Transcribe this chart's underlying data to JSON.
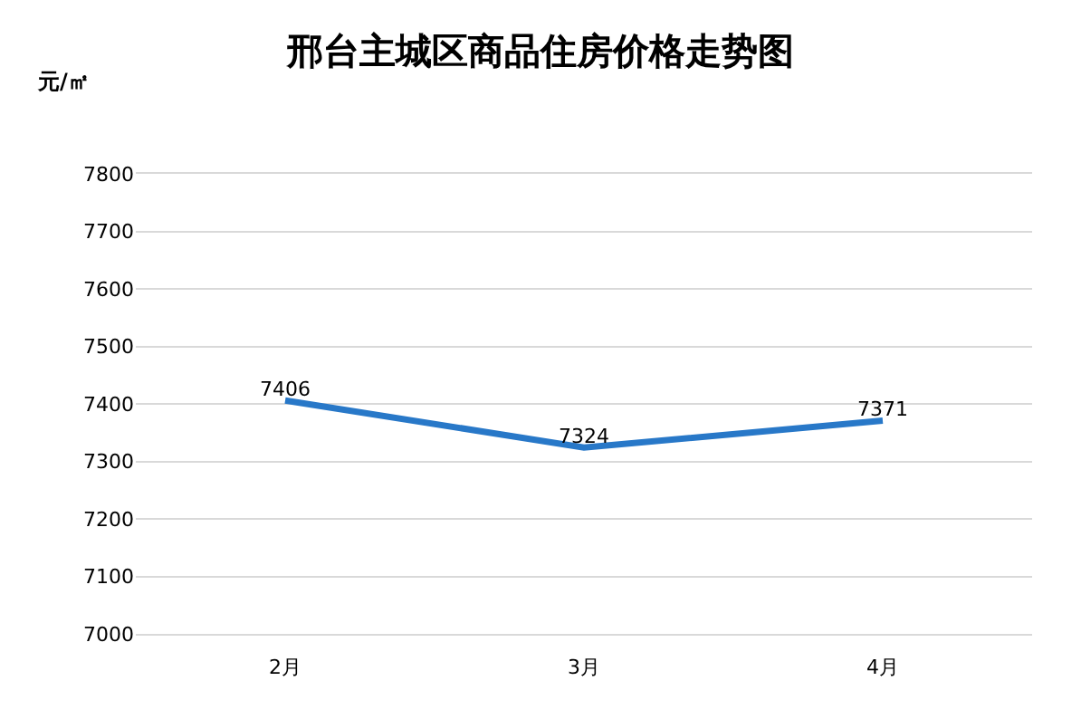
{
  "chart_data": {
    "type": "line",
    "title": "邢台主城区商品住房价格走势图",
    "ylabel": "元/㎡",
    "categories": [
      "2月",
      "3月",
      "4月"
    ],
    "series": [
      {
        "color": "#2878c8",
        "values": [
          7406,
          7324,
          7371
        ]
      }
    ],
    "ylim": [
      7000,
      7800
    ],
    "yticks": [
      7000,
      7100,
      7200,
      7300,
      7400,
      7500,
      7600,
      7700,
      7800
    ],
    "grid": "y",
    "marker": "none",
    "line_style": "solid",
    "data_labels": true
  }
}
